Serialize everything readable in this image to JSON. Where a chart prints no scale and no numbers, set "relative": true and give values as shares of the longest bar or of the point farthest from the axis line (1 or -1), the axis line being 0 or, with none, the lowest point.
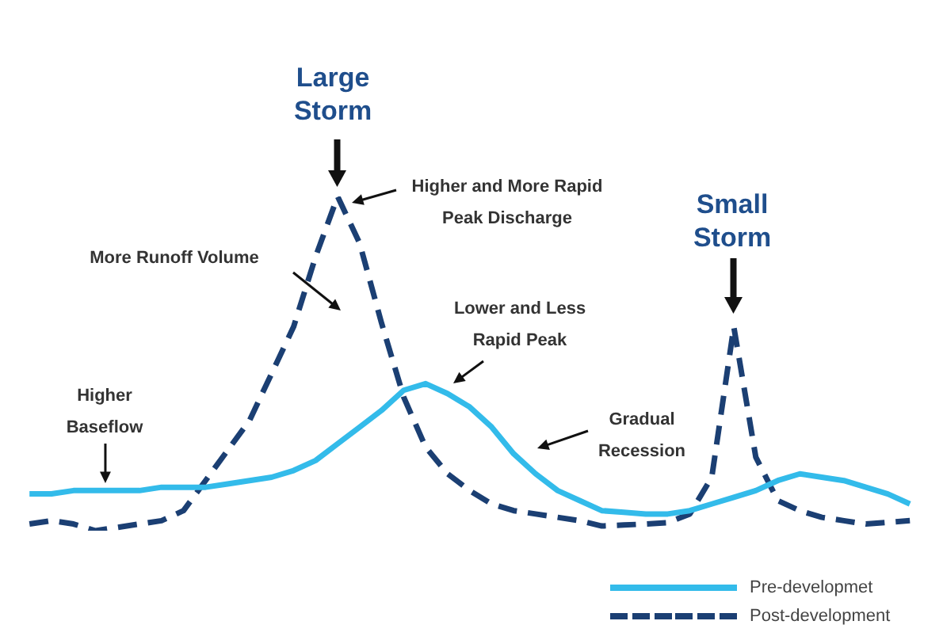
{
  "chart_data": {
    "type": "line",
    "relative": true,
    "grid": false,
    "marker": "none",
    "legend": "bottom right",
    "categories": [
      null,
      null,
      null,
      null,
      null,
      null,
      null,
      null,
      null,
      null,
      null,
      null,
      null,
      null,
      null,
      null,
      null,
      null,
      null,
      null,
      null,
      null,
      null,
      null,
      null,
      null,
      null,
      null,
      null,
      null,
      null,
      null,
      null,
      null,
      null,
      null,
      null,
      null,
      null,
      null,
      null
    ],
    "series": [
      {
        "name": "Pre-developmet",
        "color": "#33bbea",
        "line_style": "solid",
        "values": [
          0.11,
          0.11,
          0.12,
          0.12,
          0.12,
          0.12,
          0.13,
          0.13,
          0.13,
          0.14,
          0.15,
          0.16,
          0.18,
          0.21,
          0.26,
          0.31,
          0.36,
          0.42,
          0.44,
          0.41,
          0.37,
          0.31,
          0.23,
          0.17,
          0.12,
          0.09,
          0.06,
          0.055,
          0.05,
          0.05,
          0.06,
          0.08,
          0.1,
          0.12,
          0.15,
          0.17,
          0.16,
          0.15,
          0.13,
          0.11,
          0.08
        ]
      },
      {
        "name": "Post-development",
        "color": "#1b3f73",
        "line_style": "dashed",
        "values": [
          0.02,
          0.03,
          0.02,
          0,
          0.01,
          0.02,
          0.03,
          0.06,
          0.15,
          0.24,
          0.33,
          0.47,
          0.61,
          0.82,
          1,
          0.86,
          0.62,
          0.4,
          0.25,
          0.17,
          0.12,
          0.08,
          0.06,
          0.05,
          0.04,
          0.03,
          0.014,
          0.017,
          0.02,
          0.024,
          0.05,
          0.16,
          0.61,
          0.22,
          0.09,
          0.06,
          0.04,
          0.03,
          0.02,
          0.025,
          0.03
        ]
      }
    ],
    "annotations": [
      "Large\nStorm",
      "Higher and More Rapid\nPeak Discharge",
      "More Runoff Volume",
      "Lower and Less\nRapid Peak",
      "Higher\nBaseflow",
      "Gradual\nRecession",
      "Small\nStorm"
    ]
  }
}
